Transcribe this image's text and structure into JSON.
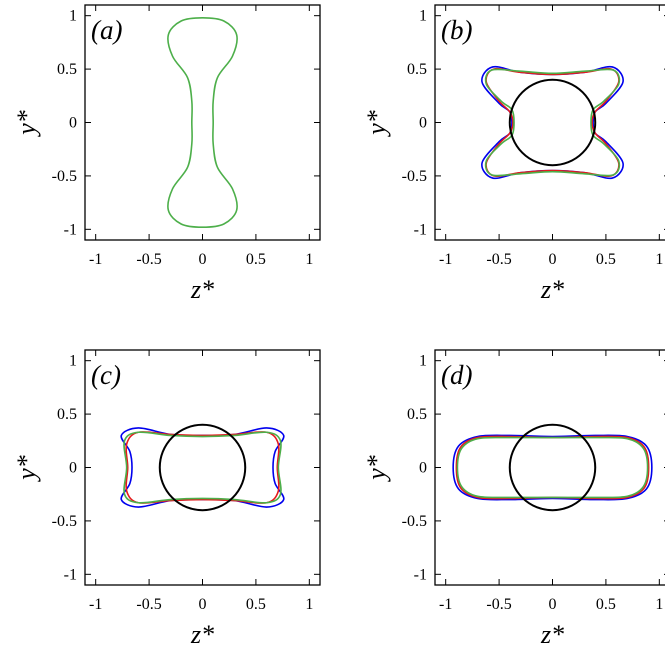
{
  "chart_data": [
    {
      "panel": "(a)",
      "type": "line",
      "xlabel": "z*",
      "ylabel": "y*",
      "xlim": [
        -1.1,
        1.1
      ],
      "ylim": [
        -1.1,
        1.1
      ],
      "xticks": [
        "-1",
        "-0.5",
        "0",
        "0.5",
        "1"
      ],
      "yticks": [
        "-1",
        "-0.5",
        "0",
        "0.5",
        "1"
      ],
      "series": [
        {
          "color": "#4daf4a",
          "shape": "peanut",
          "points": [
            [
              0,
              0.98
            ],
            [
              0.2,
              0.95
            ],
            [
              0.32,
              0.82
            ],
            [
              0.28,
              0.62
            ],
            [
              0.14,
              0.42
            ],
            [
              0.1,
              0.2
            ],
            [
              0.1,
              0
            ],
            [
              0.1,
              -0.2
            ],
            [
              0.14,
              -0.42
            ],
            [
              0.28,
              -0.62
            ],
            [
              0.32,
              -0.82
            ],
            [
              0.2,
              -0.95
            ],
            [
              0,
              -0.98
            ],
            [
              -0.2,
              -0.95
            ],
            [
              -0.32,
              -0.82
            ],
            [
              -0.28,
              -0.62
            ],
            [
              -0.14,
              -0.42
            ],
            [
              -0.1,
              -0.2
            ],
            [
              -0.1,
              0
            ],
            [
              -0.1,
              0.2
            ],
            [
              -0.14,
              0.42
            ],
            [
              -0.28,
              0.62
            ],
            [
              -0.32,
              0.82
            ],
            [
              -0.2,
              0.95
            ]
          ]
        }
      ]
    },
    {
      "panel": "(b)",
      "type": "line",
      "xlabel": "z*",
      "ylabel": "y*",
      "xlim": [
        -1.1,
        1.1
      ],
      "ylim": [
        -1.1,
        1.1
      ],
      "xticks": [
        "-1",
        "-0.5",
        "0",
        "0.5",
        "1"
      ],
      "yticks": [
        "-1",
        "-0.5",
        "0",
        "0.5",
        "1"
      ],
      "circle": {
        "cx": 0,
        "cy": 0,
        "r": 0.4,
        "color": "#000000"
      },
      "series": [
        {
          "color": "#0000ee",
          "points": [
            [
              0,
              0.45
            ],
            [
              0.3,
              0.47
            ],
            [
              0.56,
              0.52
            ],
            [
              0.66,
              0.38
            ],
            [
              0.5,
              0.18
            ],
            [
              0.4,
              0.1
            ],
            [
              0.38,
              0
            ],
            [
              0.4,
              -0.1
            ],
            [
              0.5,
              -0.18
            ],
            [
              0.66,
              -0.38
            ],
            [
              0.56,
              -0.52
            ],
            [
              0.3,
              -0.47
            ],
            [
              0,
              -0.45
            ],
            [
              -0.3,
              -0.47
            ],
            [
              -0.56,
              -0.52
            ],
            [
              -0.66,
              -0.38
            ],
            [
              -0.5,
              -0.18
            ],
            [
              -0.4,
              -0.1
            ],
            [
              -0.38,
              0
            ],
            [
              -0.4,
              0.1
            ],
            [
              -0.5,
              0.18
            ],
            [
              -0.66,
              0.38
            ],
            [
              -0.56,
              0.52
            ],
            [
              -0.3,
              0.47
            ]
          ]
        },
        {
          "color": "#e41a1c",
          "points": [
            [
              0,
              0.45
            ],
            [
              0.3,
              0.47
            ],
            [
              0.55,
              0.5
            ],
            [
              0.62,
              0.38
            ],
            [
              0.5,
              0.2
            ],
            [
              0.4,
              0.1
            ],
            [
              0.37,
              0
            ],
            [
              0.4,
              -0.1
            ],
            [
              0.5,
              -0.2
            ],
            [
              0.62,
              -0.38
            ],
            [
              0.55,
              -0.5
            ],
            [
              0.3,
              -0.47
            ],
            [
              0,
              -0.45
            ],
            [
              -0.3,
              -0.47
            ],
            [
              -0.55,
              -0.5
            ],
            [
              -0.62,
              -0.38
            ],
            [
              -0.5,
              -0.2
            ],
            [
              -0.4,
              -0.1
            ],
            [
              -0.37,
              0
            ],
            [
              -0.4,
              0.1
            ],
            [
              -0.5,
              0.2
            ],
            [
              -0.62,
              0.38
            ],
            [
              -0.55,
              0.5
            ],
            [
              -0.3,
              0.47
            ]
          ]
        },
        {
          "color": "#4daf4a",
          "points": [
            [
              0,
              0.46
            ],
            [
              0.3,
              0.48
            ],
            [
              0.57,
              0.49
            ],
            [
              0.62,
              0.36
            ],
            [
              0.48,
              0.2
            ],
            [
              0.38,
              0.12
            ],
            [
              0.36,
              0
            ],
            [
              0.38,
              -0.12
            ],
            [
              0.48,
              -0.2
            ],
            [
              0.62,
              -0.36
            ],
            [
              0.57,
              -0.49
            ],
            [
              0.3,
              -0.48
            ],
            [
              0,
              -0.46
            ],
            [
              -0.3,
              -0.48
            ],
            [
              -0.57,
              -0.49
            ],
            [
              -0.62,
              -0.36
            ],
            [
              -0.48,
              -0.2
            ],
            [
              -0.38,
              -0.12
            ],
            [
              -0.36,
              0
            ],
            [
              -0.38,
              0.12
            ],
            [
              -0.48,
              0.2
            ],
            [
              -0.62,
              0.36
            ],
            [
              -0.57,
              0.49
            ],
            [
              -0.3,
              0.48
            ]
          ]
        }
      ]
    },
    {
      "panel": "(c)",
      "type": "line",
      "xlabel": "z*",
      "ylabel": "y*",
      "xlim": [
        -1.1,
        1.1
      ],
      "ylim": [
        -1.1,
        1.1
      ],
      "xticks": [
        "-1",
        "-0.5",
        "0",
        "0.5",
        "1"
      ],
      "yticks": [
        "-1",
        "-0.5",
        "0",
        "0.5",
        "1"
      ],
      "circle": {
        "cx": 0,
        "cy": 0,
        "r": 0.4,
        "color": "#000000"
      },
      "series": [
        {
          "color": "#0000ee",
          "points": [
            [
              0,
              0.3
            ],
            [
              0.3,
              0.31
            ],
            [
              0.6,
              0.37
            ],
            [
              0.76,
              0.3
            ],
            [
              0.68,
              0.15
            ],
            [
              0.66,
              0
            ],
            [
              0.68,
              -0.15
            ],
            [
              0.76,
              -0.3
            ],
            [
              0.6,
              -0.37
            ],
            [
              0.3,
              -0.31
            ],
            [
              0,
              -0.3
            ],
            [
              -0.3,
              -0.31
            ],
            [
              -0.6,
              -0.37
            ],
            [
              -0.76,
              -0.3
            ],
            [
              -0.68,
              -0.15
            ],
            [
              -0.66,
              0
            ],
            [
              -0.68,
              0.15
            ],
            [
              -0.76,
              0.3
            ],
            [
              -0.6,
              0.37
            ],
            [
              -0.3,
              0.31
            ]
          ]
        },
        {
          "color": "#e41a1c",
          "points": [
            [
              0,
              0.3
            ],
            [
              0.3,
              0.31
            ],
            [
              0.6,
              0.33
            ],
            [
              0.71,
              0.22
            ],
            [
              0.7,
              0
            ],
            [
              0.71,
              -0.22
            ],
            [
              0.6,
              -0.33
            ],
            [
              0.3,
              -0.31
            ],
            [
              0,
              -0.3
            ],
            [
              -0.3,
              -0.31
            ],
            [
              -0.6,
              -0.33
            ],
            [
              -0.71,
              -0.22
            ],
            [
              -0.7,
              0
            ],
            [
              -0.71,
              0.22
            ],
            [
              -0.6,
              0.33
            ],
            [
              -0.3,
              0.31
            ]
          ]
        },
        {
          "color": "#4daf4a",
          "points": [
            [
              0,
              0.29
            ],
            [
              0.3,
              0.3
            ],
            [
              0.6,
              0.33
            ],
            [
              0.73,
              0.25
            ],
            [
              0.71,
              0
            ],
            [
              0.73,
              -0.25
            ],
            [
              0.6,
              -0.33
            ],
            [
              0.3,
              -0.3
            ],
            [
              0,
              -0.29
            ],
            [
              -0.3,
              -0.3
            ],
            [
              -0.6,
              -0.33
            ],
            [
              -0.73,
              -0.25
            ],
            [
              -0.71,
              0
            ],
            [
              -0.73,
              0.25
            ],
            [
              -0.6,
              0.33
            ],
            [
              -0.3,
              0.3
            ]
          ]
        }
      ]
    },
    {
      "panel": "(d)",
      "type": "line",
      "xlabel": "z*",
      "ylabel": "y*",
      "xlim": [
        -1.1,
        1.1
      ],
      "ylim": [
        -1.1,
        1.1
      ],
      "xticks": [
        "-1",
        "-0.5",
        "0",
        "0.5",
        "1"
      ],
      "yticks": [
        "-1",
        "-0.5",
        "0",
        "0.5",
        "1"
      ],
      "circle": {
        "cx": 0,
        "cy": 0,
        "r": 0.4,
        "color": "#000000"
      },
      "series": [
        {
          "color": "#0000ee",
          "points": [
            [
              0,
              0.29
            ],
            [
              0.4,
              0.3
            ],
            [
              0.7,
              0.29
            ],
            [
              0.88,
              0.2
            ],
            [
              0.93,
              0
            ],
            [
              0.88,
              -0.2
            ],
            [
              0.7,
              -0.29
            ],
            [
              0.4,
              -0.3
            ],
            [
              0,
              -0.29
            ],
            [
              -0.4,
              -0.3
            ],
            [
              -0.7,
              -0.29
            ],
            [
              -0.88,
              -0.2
            ],
            [
              -0.93,
              0
            ],
            [
              -0.88,
              0.2
            ],
            [
              -0.7,
              0.29
            ],
            [
              -0.4,
              0.3
            ]
          ]
        },
        {
          "color": "#e41a1c",
          "points": [
            [
              0,
              0.28
            ],
            [
              0.4,
              0.29
            ],
            [
              0.7,
              0.28
            ],
            [
              0.86,
              0.19
            ],
            [
              0.9,
              0
            ],
            [
              0.86,
              -0.19
            ],
            [
              0.7,
              -0.28
            ],
            [
              0.4,
              -0.29
            ],
            [
              0,
              -0.28
            ],
            [
              -0.4,
              -0.29
            ],
            [
              -0.7,
              -0.28
            ],
            [
              -0.86,
              -0.19
            ],
            [
              -0.9,
              0
            ],
            [
              -0.86,
              0.19
            ],
            [
              -0.7,
              0.28
            ],
            [
              -0.4,
              0.29
            ]
          ]
        },
        {
          "color": "#4daf4a",
          "points": [
            [
              0,
              0.28
            ],
            [
              0.4,
              0.28
            ],
            [
              0.7,
              0.27
            ],
            [
              0.85,
              0.18
            ],
            [
              0.89,
              0
            ],
            [
              0.85,
              -0.18
            ],
            [
              0.7,
              -0.27
            ],
            [
              0.4,
              -0.28
            ],
            [
              0,
              -0.28
            ],
            [
              -0.4,
              -0.28
            ],
            [
              -0.7,
              -0.27
            ],
            [
              -0.85,
              -0.18
            ],
            [
              -0.89,
              0
            ],
            [
              -0.85,
              0.18
            ],
            [
              -0.7,
              0.27
            ],
            [
              -0.4,
              0.28
            ]
          ]
        }
      ]
    }
  ]
}
